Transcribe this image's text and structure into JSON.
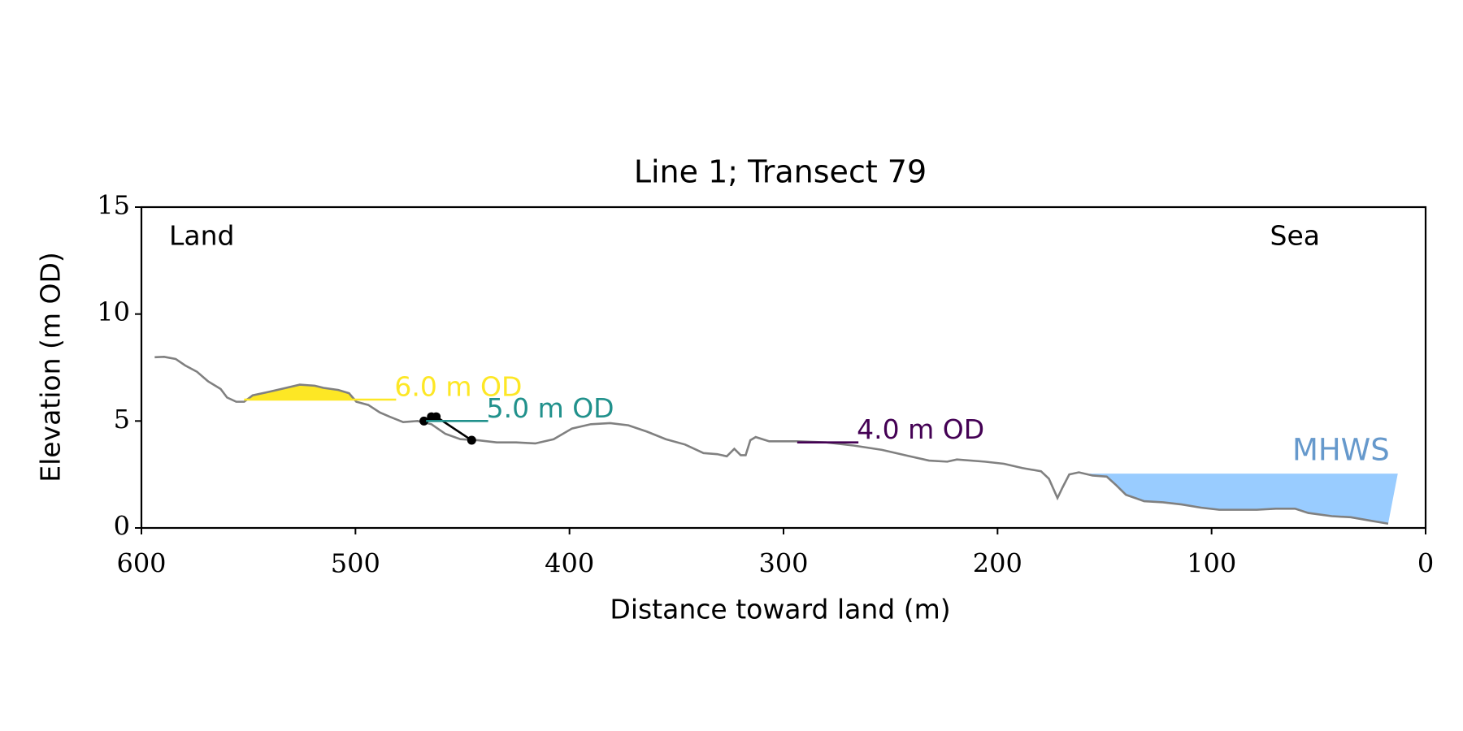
{
  "chart_data": {
    "type": "line",
    "title": "Line 1; Transect 79",
    "xlabel": "Distance toward land (m)",
    "ylabel": "Elevation (m OD)",
    "annotations": [
      "Land",
      "Sea"
    ],
    "xlim": [
      600,
      0
    ],
    "ylim": [
      0,
      15
    ],
    "xticks": [
      600,
      500,
      400,
      300,
      200,
      100,
      0
    ],
    "yticks": [
      0,
      5,
      10,
      15
    ],
    "grid": false,
    "series": [
      {
        "color": "#808080",
        "x": [
          593.8,
          589.4,
          584,
          579.6,
          574,
          568.8,
          563,
          560,
          555.7,
          552,
          548,
          541,
          534.6,
          526,
          519,
          515,
          508,
          503,
          499.6,
          494,
          488.6,
          484,
          477.7,
          471,
          464.5,
          458,
          451,
          442.6,
          434,
          425,
          416,
          407.4,
          398.8,
          390,
          381,
          372.5,
          363.7,
          355,
          346,
          337.4,
          331,
          326.5,
          323,
          320,
          317.7,
          315.5,
          313,
          306.7,
          293.6,
          280,
          267,
          254,
          241,
          232,
          223.5,
          219,
          206,
          197,
          188.4,
          179.7,
          176,
          172,
          169.6,
          166.5,
          162,
          155.6,
          149,
          144.6,
          140,
          131.5,
          122.7,
          114,
          105,
          96.4,
          87.6,
          78.9,
          70,
          61,
          54.8,
          43.8,
          35,
          26.3,
          17.5
        ],
        "values": [
          7.98,
          8.0,
          7.9,
          7.6,
          7.3,
          6.85,
          6.5,
          6.1,
          5.9,
          5.9,
          6.2,
          6.35,
          6.5,
          6.7,
          6.65,
          6.55,
          6.45,
          6.3,
          5.9,
          5.75,
          5.4,
          5.2,
          4.95,
          5.0,
          4.85,
          4.4,
          4.15,
          4.1,
          4.0,
          4.0,
          3.95,
          4.15,
          4.65,
          4.85,
          4.9,
          4.8,
          4.5,
          4.15,
          3.9,
          3.5,
          3.45,
          3.35,
          3.7,
          3.4,
          3.4,
          4.1,
          4.25,
          4.05,
          4.05,
          4.0,
          3.85,
          3.65,
          3.35,
          3.15,
          3.1,
          3.2,
          3.1,
          3.0,
          2.8,
          2.65,
          2.3,
          1.4,
          1.9,
          2.5,
          2.6,
          2.45,
          2.4,
          2.0,
          1.55,
          1.25,
          1.2,
          1.1,
          0.95,
          0.85,
          0.85,
          0.85,
          0.9,
          0.9,
          0.7,
          0.55,
          0.5,
          0.35,
          0.2
        ]
      },
      {
        "color": "#000000",
        "markers": true,
        "x": [
          468,
          464.5,
          462.3,
          445.7
        ],
        "values": [
          5.0,
          5.2,
          5.2,
          4.1
        ]
      }
    ],
    "contours": [
      {
        "label": "6.0 m OD",
        "level": 6.0,
        "xrange": [
          552,
          481
        ],
        "color": "#fde725",
        "fill": "above"
      },
      {
        "label": "5.0 m OD",
        "level": 5.0,
        "xrange": [
          467,
          438
        ],
        "color": "#21918c"
      },
      {
        "label": "4.0 m OD",
        "level": 4.0,
        "xrange": [
          293.6,
          265
        ],
        "color": "#440154"
      },
      {
        "label": "MHWS",
        "level": 2.54,
        "xrange": [
          157,
          13
        ],
        "color": "#99ccff",
        "label_color": "#6699cc",
        "fill": "below"
      }
    ]
  }
}
